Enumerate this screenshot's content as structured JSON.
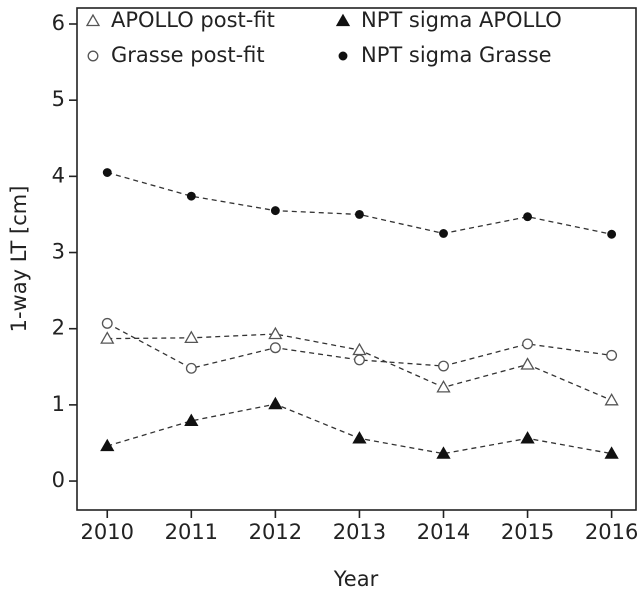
{
  "chart_data": {
    "type": "line",
    "x_label": "Year",
    "y_label": "1-way LT [cm]",
    "x": [
      2010,
      2011,
      2012,
      2013,
      2014,
      2015,
      2016
    ],
    "series": [
      {
        "name": "APOLLO post-fit",
        "color": "#555555",
        "marker": "triangle-open",
        "values": [
          1.87,
          1.88,
          1.93,
          1.72,
          1.23,
          1.53,
          1.06
        ]
      },
      {
        "name": "Grasse post-fit",
        "color": "#555555",
        "marker": "circle-open",
        "values": [
          2.07,
          1.48,
          1.75,
          1.59,
          1.51,
          1.8,
          1.65
        ]
      },
      {
        "name": "NPT sigma APOLLO",
        "color": "#111111",
        "marker": "triangle-filled",
        "values": [
          0.46,
          0.79,
          1.01,
          0.56,
          0.36,
          0.56,
          0.36
        ]
      },
      {
        "name": "NPT sigma Grasse",
        "color": "#111111",
        "marker": "circle-filled",
        "values": [
          4.05,
          3.74,
          3.55,
          3.5,
          3.25,
          3.47,
          3.24
        ]
      }
    ],
    "linestyle": "dashed",
    "xlim": [
      2009.64,
      2016.29
    ],
    "xticks": [
      2010,
      2011,
      2012,
      2013,
      2014,
      2015,
      2016
    ],
    "ylim": [
      -0.38,
      6.21
    ],
    "yticks": [
      0,
      1,
      2,
      3,
      4,
      5,
      6
    ],
    "grid": false,
    "legend": "upper left"
  }
}
